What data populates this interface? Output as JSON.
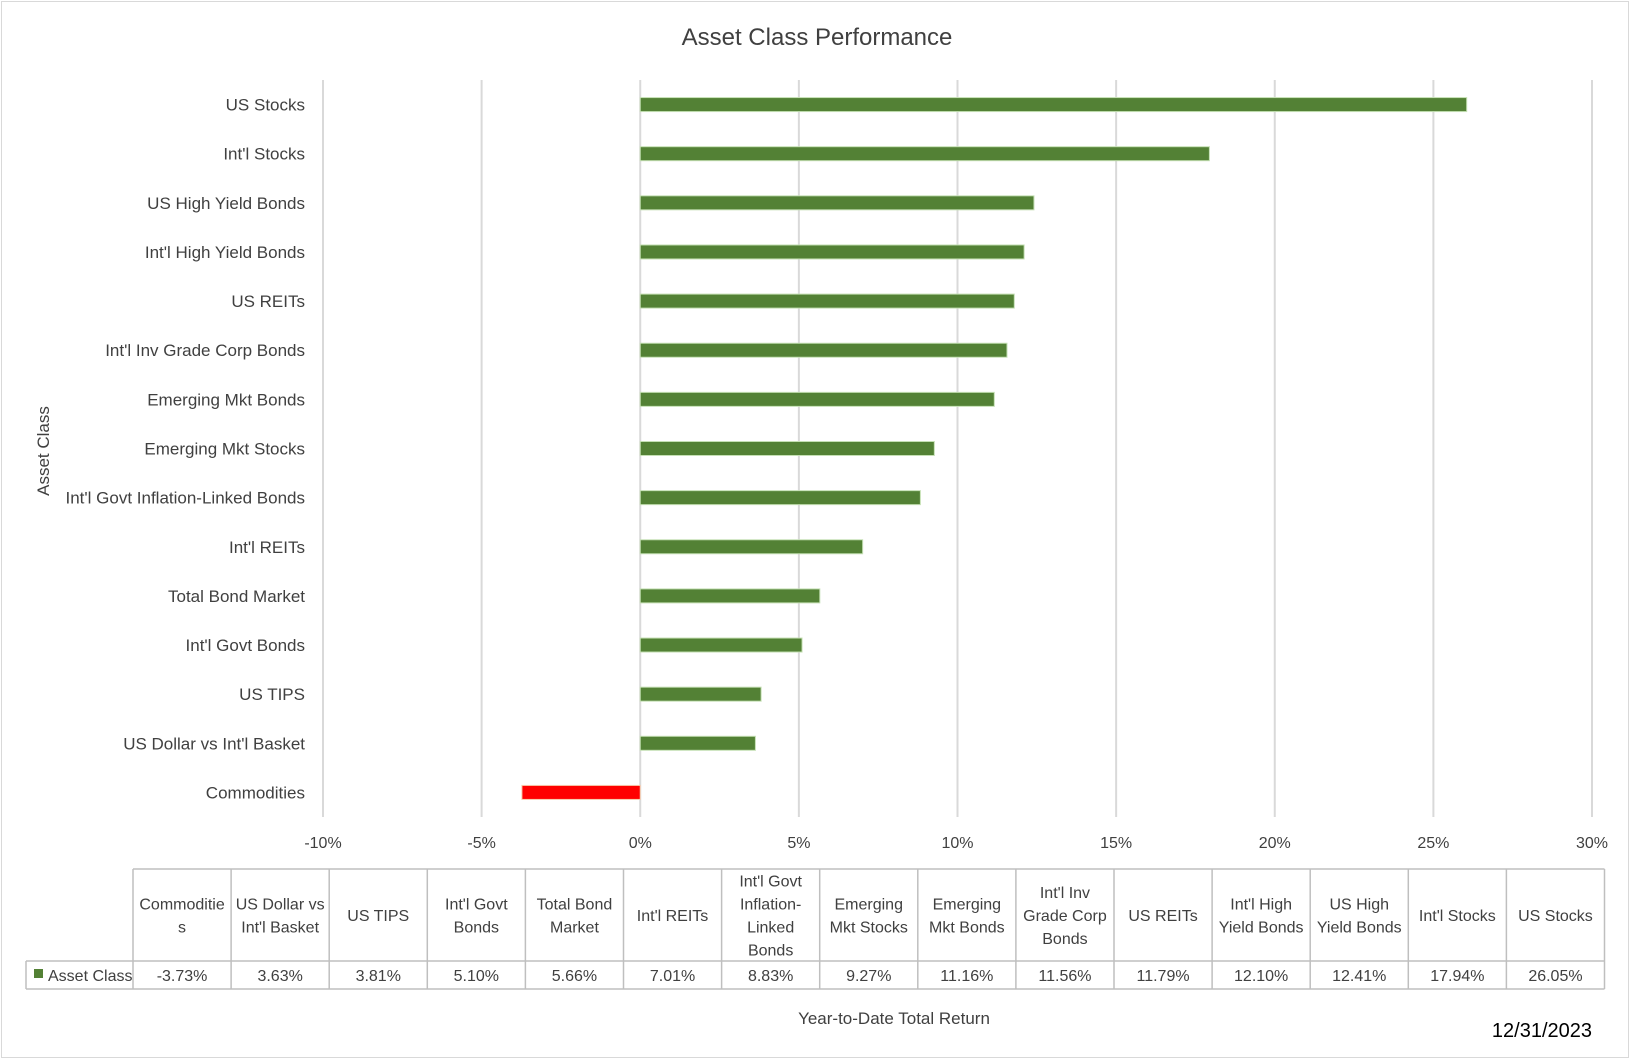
{
  "chart_data": {
    "type": "bar",
    "orientation": "horizontal",
    "title": "Asset Class Performance",
    "xlabel": "Year-to-Date Total Return",
    "ylabel": "Asset Class",
    "xlim": [
      -10,
      30
    ],
    "x_ticks": [
      -10,
      -5,
      0,
      5,
      10,
      15,
      20,
      25,
      30
    ],
    "x_tick_labels": [
      "-10%",
      "-5%",
      "0%",
      "5%",
      "10%",
      "15%",
      "20%",
      "25%",
      "30%"
    ],
    "grid": "vertical",
    "series": [
      {
        "name": "Asset Class"
      }
    ],
    "categories": [
      "Commodities",
      "US Dollar vs Int'l Basket",
      "US TIPS",
      "Int'l Govt Bonds",
      "Total Bond Market",
      "Int'l REITs",
      "Int'l Govt Inflation-Linked Bonds",
      "Emerging Mkt Stocks",
      "Emerging Mkt Bonds",
      "Int'l Inv Grade Corp Bonds",
      "US REITs",
      "Int'l High Yield Bonds",
      "US High Yield Bonds",
      "Int'l Stocks",
      "US Stocks"
    ],
    "values": [
      -3.73,
      3.63,
      3.81,
      5.1,
      5.66,
      7.01,
      8.83,
      9.27,
      11.16,
      11.56,
      11.79,
      12.1,
      12.41,
      17.94,
      26.05
    ],
    "data_table": {
      "legend_label": "Asset Class",
      "headers": [
        [
          "Commoditie",
          "s"
        ],
        [
          "US Dollar vs",
          "Int'l Basket"
        ],
        [
          "US TIPS"
        ],
        [
          "Int'l Govt",
          "Bonds"
        ],
        [
          "Total Bond",
          "Market"
        ],
        [
          "Int'l REITs"
        ],
        [
          "Int'l Govt",
          "Inflation-",
          "Linked",
          "Bonds"
        ],
        [
          "Emerging",
          "Mkt Stocks"
        ],
        [
          "Emerging",
          "Mkt Bonds"
        ],
        [
          "Int'l Inv",
          "Grade Corp",
          "Bonds"
        ],
        [
          "US REITs"
        ],
        [
          "Int'l High",
          "Yield Bonds"
        ],
        [
          "US High",
          "Yield Bonds"
        ],
        [
          "Int'l Stocks"
        ],
        [
          "US Stocks"
        ]
      ],
      "values": [
        "-3.73%",
        "3.63%",
        "3.81%",
        "5.10%",
        "5.66%",
        "7.01%",
        "8.83%",
        "9.27%",
        "11.16%",
        "11.56%",
        "11.79%",
        "12.10%",
        "12.41%",
        "17.94%",
        "26.05%"
      ]
    },
    "colors": {
      "positive": "#538135",
      "negative": "#ff0000"
    }
  },
  "date": "12/31/2023"
}
